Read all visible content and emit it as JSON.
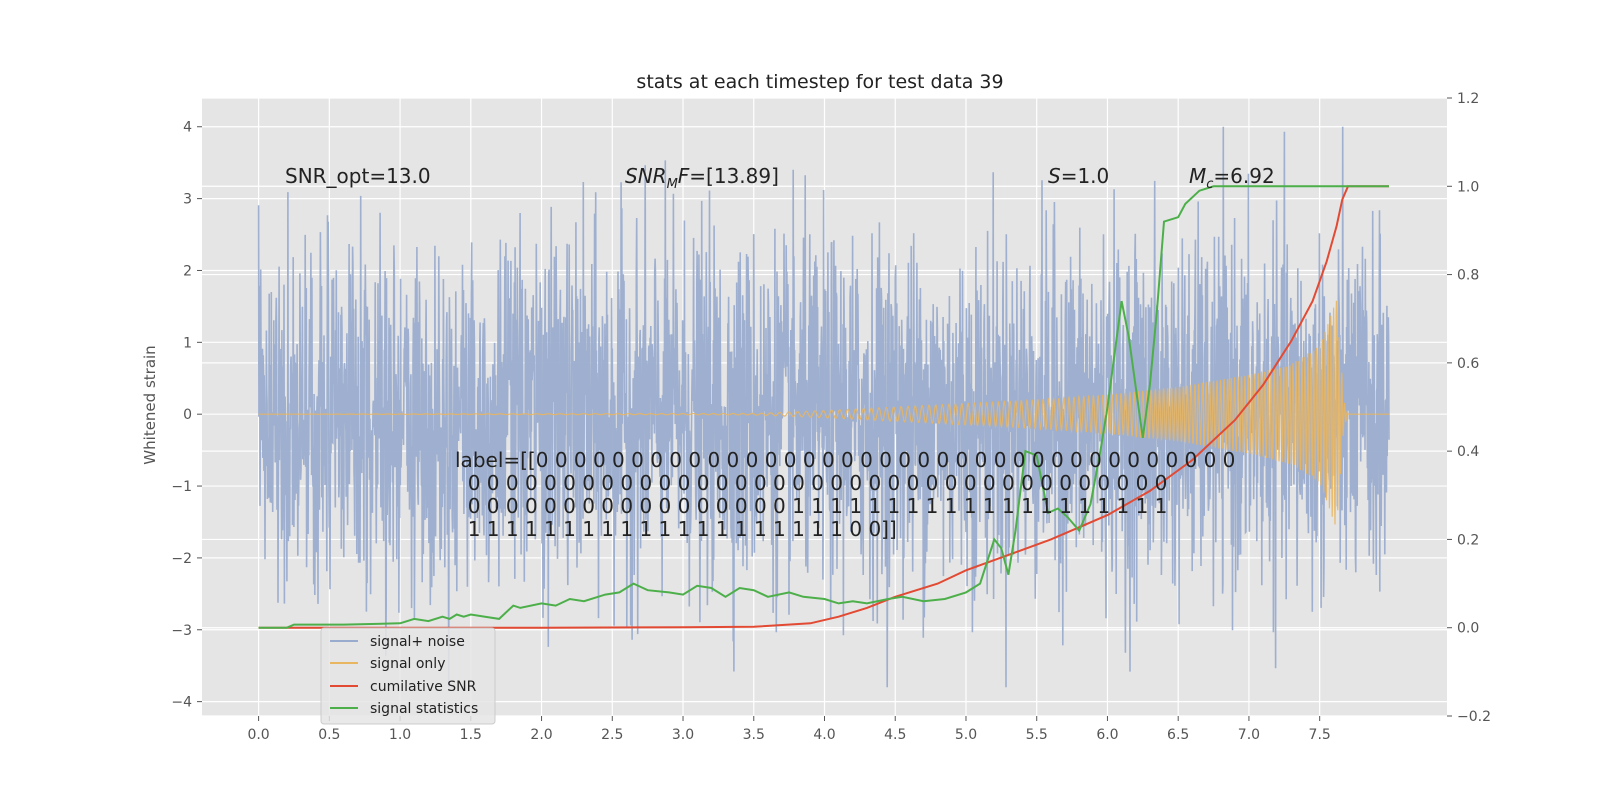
{
  "chart_data": {
    "type": "line",
    "title": "stats at each timestep for test data 39",
    "xlabel": "",
    "ylabel": "Whitened strain",
    "xlim": [
      -0.4,
      8.4
    ],
    "ylim": [
      -4.2,
      4.4
    ],
    "y2lim": [
      -0.2,
      1.2
    ],
    "grid": true,
    "x_ticks": [
      "0.0",
      "0.5",
      "1.0",
      "1.5",
      "2.0",
      "2.5",
      "3.0",
      "3.5",
      "4.0",
      "4.5",
      "5.0",
      "5.5",
      "6.0",
      "6.5",
      "7.0",
      "7.5"
    ],
    "y_ticks": [
      "4",
      "3",
      "2",
      "1",
      "0",
      "−1",
      "−2",
      "−3",
      "−4"
    ],
    "y2_ticks": [
      "1.2",
      "1.0",
      "0.8",
      "0.6",
      "0.4",
      "0.2",
      "0.0",
      "−0.2"
    ],
    "annotations": {
      "snr_opt": "SNR_opt=13.0",
      "snr_mf_label": "SNR",
      "snr_mf_sub": "M",
      "snr_mf_label2": "F",
      "snr_mf_value": "=[13.89]",
      "s_label": "S",
      "s_value": "=1.0",
      "mc_label": "M",
      "mc_sub": "c",
      "mc_value": "=6.92",
      "label_lines": [
        "label=[[0 0 0 0 0 0 0 0 0 0 0 0 0 0 0 0 0 0 0 0 0 0 0 0 0 0 0 0 0 0 0 0 0 0 0 0 0",
        "  0 0 0 0 0 0 0 0 0 0 0 0 0 0 0 0 0 0 0 0 0 0 0 0 0 0 0 0 0 0 0 0 0 0 0 0 0",
        "  0 0 0 0 0 0 0 0 0 0 0 0 0 0 0 0 0 1 1 1 1 1 1 1 1 1 1 1 1 1 1 1 1 1 1 1 1",
        "  1 1 1 1 1 1 1 1 1 1 1 1 1 1 1 1 1 1 1 1 0 0]]"
      ]
    },
    "series": [
      {
        "name": "signal+ noise",
        "color": "#9aacce",
        "x_range": [
          0.0,
          7.99
        ],
        "amplitude_envelope": {
          "typical": 1.4,
          "spike_max": 4.0,
          "spike_min": -3.8
        }
      },
      {
        "name": "signal only",
        "color": "#e8b560",
        "x": [
          0.0,
          3.5,
          4.0,
          4.5,
          5.0,
          5.5,
          6.0,
          6.5,
          7.0,
          7.3,
          7.5,
          7.62,
          7.67,
          7.7,
          7.99
        ],
        "envelope": [
          0.0,
          0.01,
          0.05,
          0.1,
          0.15,
          0.2,
          0.27,
          0.38,
          0.55,
          0.7,
          0.95,
          1.6,
          0.2,
          0.0,
          0.0
        ]
      },
      {
        "name": "cumilative SNR",
        "color": "#e24a33",
        "axis": "right",
        "x": [
          0.0,
          1.0,
          2.0,
          3.0,
          3.5,
          3.9,
          4.1,
          4.3,
          4.5,
          4.8,
          5.0,
          5.3,
          5.6,
          6.0,
          6.3,
          6.6,
          6.9,
          7.1,
          7.3,
          7.45,
          7.55,
          7.62,
          7.66,
          7.7,
          7.99
        ],
        "y": [
          0.0,
          0.0,
          0.0,
          0.001,
          0.002,
          0.01,
          0.025,
          0.045,
          0.07,
          0.1,
          0.13,
          0.165,
          0.2,
          0.255,
          0.31,
          0.38,
          0.47,
          0.55,
          0.65,
          0.74,
          0.83,
          0.91,
          0.97,
          1.0,
          1.0
        ]
      },
      {
        "name": "signal statistics",
        "color": "#4daf4a",
        "axis": "right",
        "x": [
          0.0,
          0.2,
          0.25,
          0.6,
          1.0,
          1.1,
          1.2,
          1.3,
          1.35,
          1.4,
          1.45,
          1.5,
          1.6,
          1.7,
          1.8,
          1.85,
          2.0,
          2.1,
          2.2,
          2.3,
          2.45,
          2.55,
          2.65,
          2.75,
          2.9,
          3.0,
          3.1,
          3.2,
          3.3,
          3.4,
          3.5,
          3.6,
          3.75,
          3.85,
          4.0,
          4.1,
          4.2,
          4.3,
          4.45,
          4.55,
          4.7,
          4.85,
          5.0,
          5.1,
          5.2,
          5.25,
          5.3,
          5.35,
          5.42,
          5.5,
          5.58,
          5.65,
          5.72,
          5.8,
          5.88,
          5.95,
          6.0,
          6.1,
          6.15,
          6.25,
          6.3,
          6.35,
          6.4,
          6.5,
          6.55,
          6.65,
          6.75,
          6.9,
          7.0,
          7.3,
          7.99
        ],
        "y": [
          0.0,
          0.0,
          0.007,
          0.007,
          0.01,
          0.02,
          0.015,
          0.025,
          0.02,
          0.03,
          0.025,
          0.03,
          0.025,
          0.02,
          0.05,
          0.045,
          0.055,
          0.05,
          0.065,
          0.06,
          0.075,
          0.08,
          0.1,
          0.085,
          0.08,
          0.075,
          0.095,
          0.09,
          0.07,
          0.09,
          0.085,
          0.07,
          0.08,
          0.07,
          0.065,
          0.055,
          0.06,
          0.055,
          0.065,
          0.07,
          0.06,
          0.065,
          0.08,
          0.1,
          0.2,
          0.18,
          0.12,
          0.22,
          0.4,
          0.39,
          0.26,
          0.27,
          0.25,
          0.22,
          0.28,
          0.4,
          0.5,
          0.74,
          0.66,
          0.43,
          0.55,
          0.72,
          0.92,
          0.93,
          0.96,
          0.99,
          1.0,
          1.0,
          1.0,
          1.0,
          1.0
        ]
      }
    ],
    "legend": {
      "placement": "lower-left"
    }
  }
}
